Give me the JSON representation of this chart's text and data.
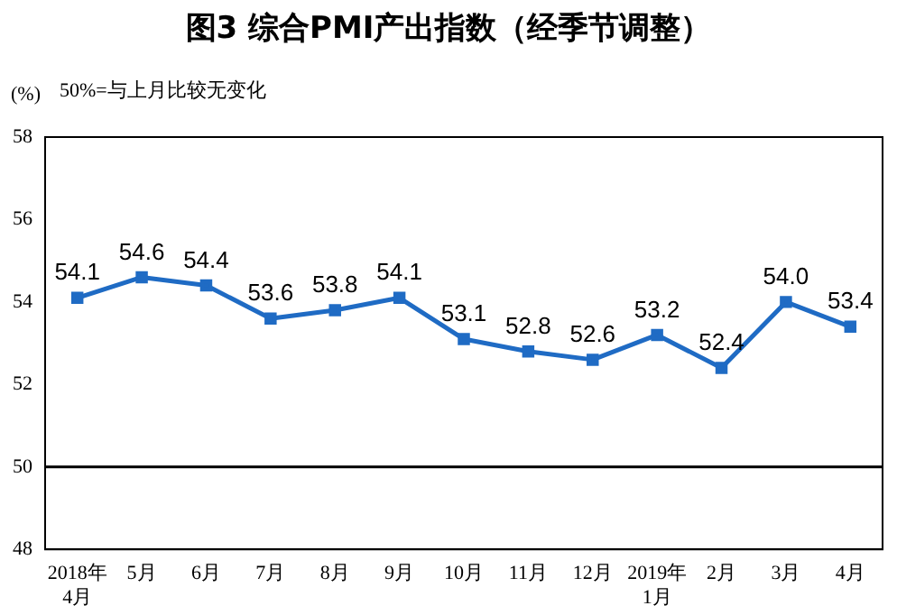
{
  "chart_data": {
    "type": "line",
    "title": "图3  综合PMI产出指数（经季节调整）",
    "ylabel": "(%)",
    "annotations": [
      "50%=与上月比较无变化"
    ],
    "categories": [
      "2018年\n4月",
      "5月",
      "6月",
      "7月",
      "8月",
      "9月",
      "10月",
      "11月",
      "12月",
      "2019年\n1月",
      "2月",
      "3月",
      "4月"
    ],
    "series": [
      {
        "color": "#1f6bc4",
        "values": [
          54.1,
          54.6,
          54.4,
          53.6,
          53.8,
          54.1,
          53.1,
          52.8,
          52.6,
          53.2,
          52.4,
          54.0,
          53.4
        ],
        "value_labels": [
          "54.1",
          "54.6",
          "54.4",
          "53.6",
          "53.8",
          "54.1",
          "53.1",
          "52.8",
          "52.6",
          "53.2",
          "52.4",
          "54.0",
          "53.4"
        ]
      }
    ],
    "ylim": [
      48,
      58
    ],
    "yticks": [
      48,
      50,
      52,
      54,
      56,
      58
    ],
    "grid": false,
    "legend": false,
    "marker": "square",
    "line_style": "solid",
    "ref_lines": [
      {
        "axis": "y",
        "value": 50,
        "color": "#000000"
      }
    ]
  }
}
